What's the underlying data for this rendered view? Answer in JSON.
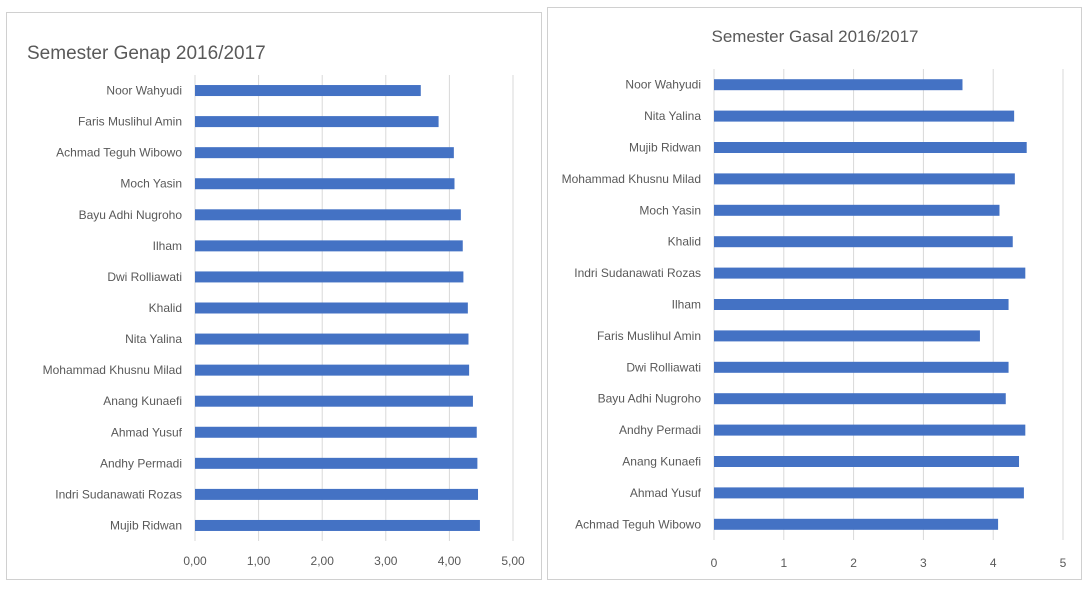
{
  "chart_data": [
    {
      "type": "bar",
      "orientation": "horizontal",
      "title": "Semester Genap 2016/2017",
      "categories": [
        "Noor Wahyudi",
        "Faris Muslihul Amin",
        "Achmad Teguh Wibowo",
        "Moch Yasin",
        "Bayu Adhi Nugroho",
        "Ilham",
        "Dwi Rolliawati",
        "Khalid",
        "Nita Yalina",
        "Mohammad Khusnu Milad",
        "Anang Kunaefi",
        "Ahmad Yusuf",
        "Andhy Permadi",
        "Indri Sudanawati Rozas",
        "Mujib Ridwan"
      ],
      "values": [
        3.55,
        3.83,
        4.07,
        4.08,
        4.18,
        4.21,
        4.22,
        4.29,
        4.3,
        4.31,
        4.37,
        4.43,
        4.44,
        4.45,
        4.48
      ],
      "xlim": [
        0,
        5
      ],
      "ticks": [
        "0,00",
        "1,00",
        "2,00",
        "3,00",
        "4,00",
        "5,00"
      ],
      "grid": true,
      "bar_color": "#4472c4"
    },
    {
      "type": "bar",
      "orientation": "horizontal",
      "title": "Semester Gasal 2016/2017",
      "categories": [
        "Noor Wahyudi",
        "Nita Yalina",
        "Mujib Ridwan",
        "Mohammad Khusnu Milad",
        "Moch Yasin",
        "Khalid",
        "Indri Sudanawati Rozas",
        "Ilham",
        "Faris Muslihul Amin",
        "Dwi Rolliawati",
        "Bayu Adhi Nugroho",
        "Andhy Permadi",
        "Anang Kunaefi",
        "Ahmad Yusuf",
        "Achmad Teguh Wibowo"
      ],
      "values": [
        3.56,
        4.3,
        4.48,
        4.31,
        4.09,
        4.28,
        4.46,
        4.22,
        3.81,
        4.22,
        4.18,
        4.46,
        4.37,
        4.44,
        4.07
      ],
      "xlim": [
        0,
        5
      ],
      "ticks": [
        "0",
        "1",
        "2",
        "3",
        "4",
        "5"
      ],
      "grid": true,
      "bar_color": "#4472c4"
    }
  ]
}
